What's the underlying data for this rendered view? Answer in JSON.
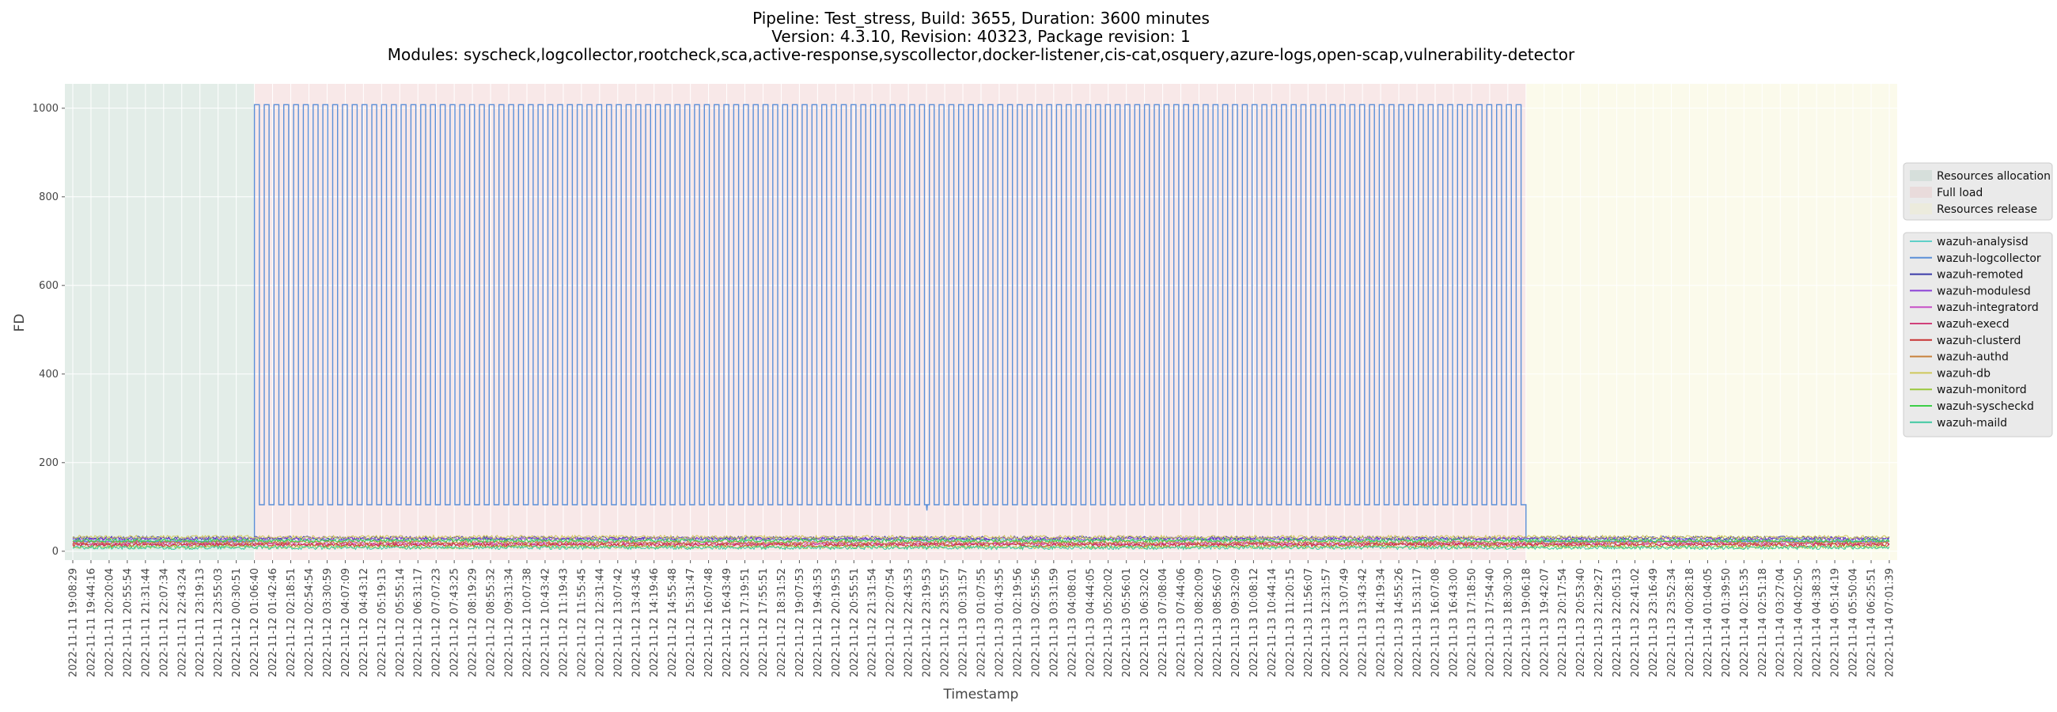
{
  "chart_data": {
    "type": "line",
    "title": [
      "Pipeline: Test_stress, Build: 3655, Duration: 3600 minutes",
      "Version: 4.3.10, Revision: 40323, Package revision: 1",
      "Modules: syscheck,logcollector,rootcheck,sca,active-response,syscollector,docker-listener,cis-cat,osquery,azure-logs,open-scap,vulnerability-detector"
    ],
    "xlabel": "Timestamp",
    "ylabel": "FD",
    "ylim": [
      -20,
      1055
    ],
    "yticks": [
      0,
      200,
      400,
      600,
      800,
      1000
    ],
    "grid": true,
    "phase_legend_placement": "right",
    "series_legend_placement": "right",
    "x_tick_labels": [
      "2022-11-11 19:08:29",
      "2022-11-11 19:44:16",
      "2022-11-11 20:20:04",
      "2022-11-11 20:55:54",
      "2022-11-11 21:31:44",
      "2022-11-11 22:07:34",
      "2022-11-11 22:43:24",
      "2022-11-11 23:19:13",
      "2022-11-11 23:55:03",
      "2022-11-12 00:30:51",
      "2022-11-12 01:06:40",
      "2022-11-12 01:42:46",
      "2022-11-12 02:18:51",
      "2022-11-12 02:54:54",
      "2022-11-12 03:30:59",
      "2022-11-12 04:07:09",
      "2022-11-12 04:43:12",
      "2022-11-12 05:19:13",
      "2022-11-12 05:55:14",
      "2022-11-12 06:31:17",
      "2022-11-12 07:07:23",
      "2022-11-12 07:43:25",
      "2022-11-12 08:19:29",
      "2022-11-12 08:55:32",
      "2022-11-12 09:31:34",
      "2022-11-12 10:07:38",
      "2022-11-12 10:43:42",
      "2022-11-12 11:19:43",
      "2022-11-12 11:55:45",
      "2022-11-12 12:31:44",
      "2022-11-12 13:07:42",
      "2022-11-12 13:43:45",
      "2022-11-12 14:19:46",
      "2022-11-12 14:55:48",
      "2022-11-12 15:31:47",
      "2022-11-12 16:07:48",
      "2022-11-12 16:43:49",
      "2022-11-12 17:19:51",
      "2022-11-12 17:55:51",
      "2022-11-12 18:31:52",
      "2022-11-12 19:07:53",
      "2022-11-12 19:43:53",
      "2022-11-12 20:19:53",
      "2022-11-12 20:55:51",
      "2022-11-12 21:31:54",
      "2022-11-12 22:07:54",
      "2022-11-12 22:43:53",
      "2022-11-12 23:19:53",
      "2022-11-12 23:55:57",
      "2022-11-13 00:31:57",
      "2022-11-13 01:07:55",
      "2022-11-13 01:43:55",
      "2022-11-13 02:19:56",
      "2022-11-13 02:55:56",
      "2022-11-13 03:31:59",
      "2022-11-13 04:08:01",
      "2022-11-13 04:44:05",
      "2022-11-13 05:20:02",
      "2022-11-13 05:56:01",
      "2022-11-13 06:32:02",
      "2022-11-13 07:08:04",
      "2022-11-13 07:44:06",
      "2022-11-13 08:20:09",
      "2022-11-13 08:56:07",
      "2022-11-13 09:32:09",
      "2022-11-13 10:08:12",
      "2022-11-13 10:44:14",
      "2022-11-13 11:20:15",
      "2022-11-13 11:56:07",
      "2022-11-13 12:31:57",
      "2022-11-13 13:07:49",
      "2022-11-13 13:43:42",
      "2022-11-13 14:19:34",
      "2022-11-13 14:55:26",
      "2022-11-13 15:31:17",
      "2022-11-13 16:07:08",
      "2022-11-13 16:43:00",
      "2022-11-13 17:18:50",
      "2022-11-13 17:54:40",
      "2022-11-13 18:30:30",
      "2022-11-13 19:06:18",
      "2022-11-13 19:42:07",
      "2022-11-13 20:17:54",
      "2022-11-13 20:53:40",
      "2022-11-13 21:29:27",
      "2022-11-13 22:05:13",
      "2022-11-13 22:41:02",
      "2022-11-13 23:16:49",
      "2022-11-13 23:52:34",
      "2022-11-14 00:28:18",
      "2022-11-14 01:04:05",
      "2022-11-14 01:39:50",
      "2022-11-14 02:15:35",
      "2022-11-14 02:51:18",
      "2022-11-14 03:27:04",
      "2022-11-14 04:02:50",
      "2022-11-14 04:38:33",
      "2022-11-14 05:14:19",
      "2022-11-14 05:50:04",
      "2022-11-14 06:25:51",
      "2022-11-14 07:01:39"
    ],
    "phases": [
      {
        "name": "Resources allocation",
        "start_tick": 0,
        "end_tick": 10,
        "color": "#a8c8b8"
      },
      {
        "name": "Full load",
        "start_tick": 10,
        "end_tick": 80,
        "color": "#e8b8b8"
      },
      {
        "name": "Resources release",
        "start_tick": 80,
        "end_tick": 100,
        "color": "#f2eec0"
      }
    ],
    "series": [
      {
        "name": "wazuh-analysisd",
        "color": "#5fd0c8",
        "baseline": 25
      },
      {
        "name": "wazuh-logcollector",
        "color": "#5b8fd8",
        "baseline": 22,
        "cycle": {
          "low": 105,
          "high": 1008,
          "start_tick": 10,
          "end_tick": 80,
          "cycles": 130,
          "dip": {
            "at_tick": 46.8,
            "value": 92
          }
        }
      },
      {
        "name": "wazuh-remoted",
        "color": "#3a3aa8",
        "baseline": 30
      },
      {
        "name": "wazuh-modulesd",
        "color": "#8a3fd6",
        "baseline": 28
      },
      {
        "name": "wazuh-integratord",
        "color": "#c850c8",
        "baseline": 18
      },
      {
        "name": "wazuh-execd",
        "color": "#d0407a",
        "baseline": 16
      },
      {
        "name": "wazuh-clusterd",
        "color": "#c83232",
        "baseline": 14
      },
      {
        "name": "wazuh-authd",
        "color": "#c8823c",
        "baseline": 20
      },
      {
        "name": "wazuh-db",
        "color": "#cec85a",
        "baseline": 32
      },
      {
        "name": "wazuh-monitord",
        "color": "#9ac83c",
        "baseline": 10
      },
      {
        "name": "wazuh-syscheckd",
        "color": "#3ccf48",
        "baseline": 24
      },
      {
        "name": "wazuh-maild",
        "color": "#3cc8a0",
        "baseline": 8
      }
    ]
  }
}
